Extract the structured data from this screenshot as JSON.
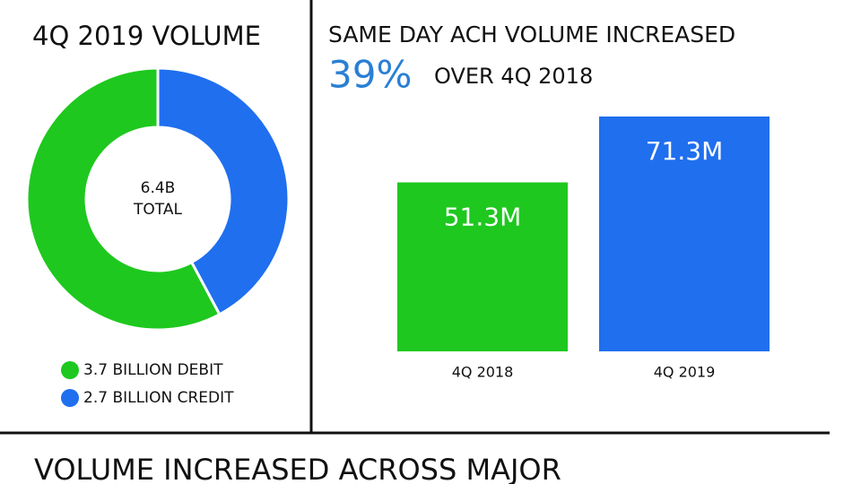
{
  "chart_data": [
    {
      "type": "donut",
      "title": "4Q 2019 VOLUME",
      "center_value": "6.4B",
      "center_caption": "TOTAL",
      "categories": [
        "3.7 BILLION DEBIT",
        "2.7 BILLION CREDIT"
      ],
      "values": [
        3.7,
        2.7
      ],
      "colors": [
        "#1ec81e",
        "#1f6fef"
      ]
    },
    {
      "type": "bar",
      "title": "SAME DAY ACH VOLUME INCREASED",
      "highlight": "39%",
      "subtitle": "OVER 4Q 2018",
      "categories": [
        "4Q 2018",
        "4Q 2019"
      ],
      "values": [
        51.3,
        71.3
      ],
      "value_labels": [
        "51.3M",
        "71.3M"
      ],
      "colors": [
        "#1ec81e",
        "#1f6fef"
      ]
    }
  ],
  "footer": "VOLUME INCREASED ACROSS MAJOR"
}
